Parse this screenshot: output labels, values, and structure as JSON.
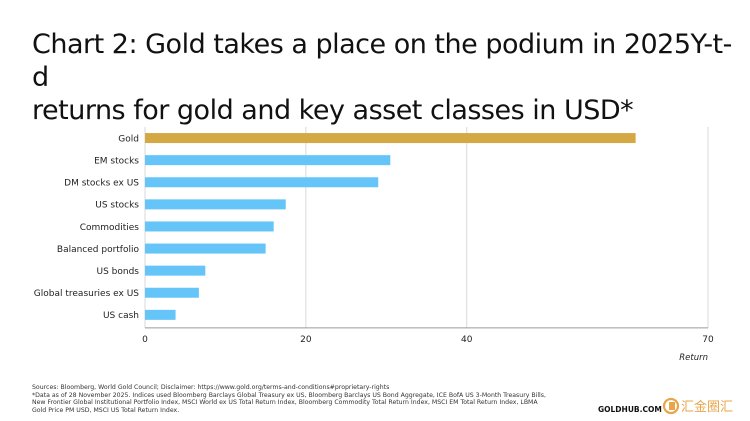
{
  "title_lines": [
    "Chart 2: Gold takes a place on the podium in 2025Y-t-d",
    "returns for gold and key asset classes in USD*"
  ],
  "chart_data": {
    "type": "bar",
    "orientation": "horizontal",
    "categories": [
      "Gold",
      "EM stocks",
      "DM stocks ex US",
      "US stocks",
      "Commodities",
      "Balanced portfolio",
      "US bonds",
      "Global treasuries ex US",
      "US cash"
    ],
    "values": [
      61,
      30.5,
      29,
      17.5,
      16,
      15,
      7.5,
      6.7,
      3.8
    ],
    "highlight_color": "#d4a843",
    "bar_color": "#66c5f8",
    "xlim": [
      0,
      70
    ],
    "xticks": [
      0,
      20,
      40,
      70
    ],
    "xlabel": "Return",
    "grid": true
  },
  "footnotes": [
    "Sources: Bloomberg, World Gold Council; Disclaimer: https://www.gold.org/terms-and-conditions#proprietary-rights",
    "*Data as of 28 November 2025. Indices used Bloomberg Barclays Global Treasury ex US, Bloomberg Barclays US Bond Aggregate, ICE BofA US 3-Month Treasury Bills, New Frontier Global Institutional Portfolio Index, MSCI World ex US Total Return Index, Bloomberg Commodity Total Return Index, MSCI EM Total Return Index, LBMA Gold Price PM USD, MSCI US Total Return Index."
  ],
  "brand": "GOLDHUB.COM",
  "watermark_text": "汇金圈汇"
}
